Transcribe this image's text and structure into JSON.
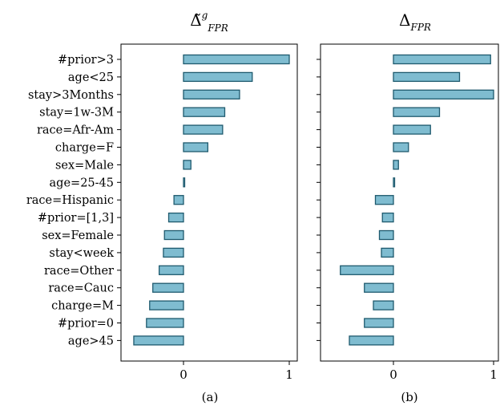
{
  "bar_color": "#7fbcd0",
  "edge_color": "#1f5a6e",
  "chart_data": [
    {
      "type": "bar",
      "orientation": "horizontal",
      "title": "Δ̃^g_FPR",
      "title_main": "Δ̃",
      "title_sup": "g",
      "title_sub": "FPR",
      "caption": "(a)",
      "categories": [
        "#prior>3",
        "age<25",
        "stay>3Months",
        "stay=1w-3M",
        "race=Afr-Am",
        "charge=F",
        "sex=Male",
        "age=25-45",
        "race=Hispanic",
        "#prior=[1,3]",
        "sex=Female",
        "stay<week",
        "race=Other",
        "race=Cauc",
        "charge=M",
        "#prior=0",
        "age>45"
      ],
      "values": [
        1.0,
        0.65,
        0.53,
        0.39,
        0.37,
        0.23,
        0.07,
        0.0,
        -0.09,
        -0.14,
        -0.18,
        -0.19,
        -0.23,
        -0.29,
        -0.32,
        -0.35,
        -0.47
      ],
      "xlim": [
        -0.55,
        1.1
      ],
      "xticks": [
        "0",
        "1"
      ],
      "xtick_values": [
        0,
        1
      ]
    },
    {
      "type": "bar",
      "orientation": "horizontal",
      "title": "Δ_FPR",
      "title_main": "Δ",
      "title_sub": "FPR",
      "caption": "(b)",
      "categories": [
        "#prior>3",
        "age<25",
        "stay>3Months",
        "stay=1w-3M",
        "race=Afr-Am",
        "charge=F",
        "sex=Male",
        "age=25-45",
        "race=Hispanic",
        "#prior=[1,3]",
        "sex=Female",
        "stay<week",
        "race=Other",
        "race=Cauc",
        "charge=M",
        "#prior=0",
        "age>45"
      ],
      "values": [
        0.97,
        0.66,
        1.0,
        0.46,
        0.37,
        0.15,
        0.05,
        0.01,
        -0.18,
        -0.11,
        -0.14,
        -0.12,
        -0.53,
        -0.29,
        -0.2,
        -0.29,
        -0.44
      ],
      "xlim": [
        -0.55,
        1.1
      ],
      "xticks": [
        "0",
        "1"
      ],
      "xtick_values": [
        0,
        1
      ]
    }
  ]
}
